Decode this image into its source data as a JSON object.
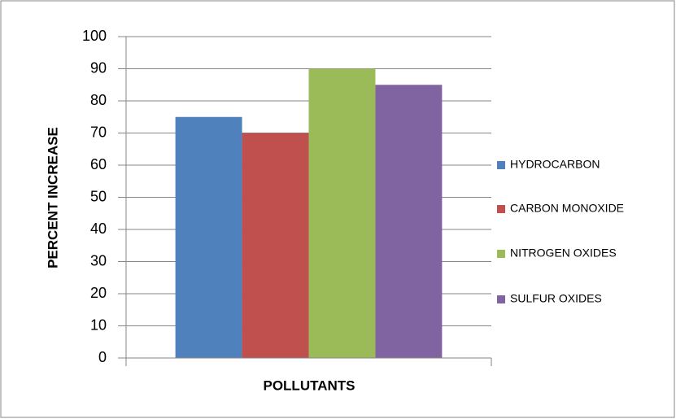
{
  "chart_data": {
    "type": "bar",
    "categories": [
      null
    ],
    "series": [
      {
        "name": "HYDROCARBON",
        "color": "#4f81bd",
        "values": [
          75
        ]
      },
      {
        "name": "CARBON MONOXIDE",
        "color": "#c0504d",
        "values": [
          70
        ]
      },
      {
        "name": "NITROGEN OXIDES",
        "color": "#9bbb59",
        "values": [
          90
        ]
      },
      {
        "name": "SULFUR OXIDES",
        "color": "#8064a2",
        "values": [
          85
        ]
      }
    ],
    "x_label": "POLLUTANTS",
    "y_label": "PERCENT INCREASE",
    "ylim": [
      0,
      100
    ],
    "yticks": [
      0,
      10,
      20,
      30,
      40,
      50,
      60,
      70,
      80,
      90,
      100
    ],
    "grid": true,
    "legend": "right"
  }
}
